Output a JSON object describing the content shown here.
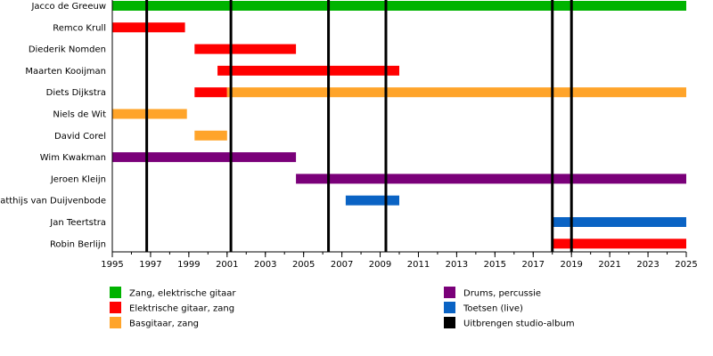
{
  "chart_data": {
    "type": "timeline",
    "title": "",
    "xlabel": "",
    "ylabel": "",
    "x_range": [
      1995,
      2025
    ],
    "x_ticks": [
      1995,
      1997,
      1999,
      2001,
      2003,
      2005,
      2007,
      2009,
      2011,
      2013,
      2015,
      2017,
      2019,
      2021,
      2023,
      2025
    ],
    "grid": false,
    "legend_position": "bottom",
    "roles": [
      {
        "key": "zang",
        "label": "Zang, elektrische gitaar",
        "color": "#00b300"
      },
      {
        "key": "gitaar",
        "label": "Elektrische gitaar, zang",
        "color": "#ff0000"
      },
      {
        "key": "bas",
        "label": "Basgitaar, zang",
        "color": "#ffa42a"
      },
      {
        "key": "drums",
        "label": "Drums, percussie",
        "color": "#7a0079"
      },
      {
        "key": "toetsen",
        "label": "Toetsen (live)",
        "color": "#0a63c4"
      },
      {
        "key": "album",
        "label": "Uitbrengen studio-album",
        "color": "#000000"
      }
    ],
    "members": [
      {
        "name": "Jacco de Greeuw",
        "periods": [
          {
            "role": "zang",
            "start": 1995,
            "end": 2025
          }
        ]
      },
      {
        "name": "Remco Krull",
        "periods": [
          {
            "role": "gitaar",
            "start": 1995,
            "end": 1998.8
          }
        ]
      },
      {
        "name": "Diederik Nomden",
        "periods": [
          {
            "role": "gitaar",
            "start": 1999.3,
            "end": 2004.6
          }
        ]
      },
      {
        "name": "Maarten Kooijman",
        "periods": [
          {
            "role": "gitaar",
            "start": 2000.5,
            "end": 2010
          }
        ]
      },
      {
        "name": "Diets Dijkstra",
        "periods": [
          {
            "role": "gitaar",
            "start": 1999.3,
            "end": 2001
          },
          {
            "role": "bas",
            "start": 2001,
            "end": 2025
          }
        ]
      },
      {
        "name": "Niels de Wit",
        "periods": [
          {
            "role": "bas",
            "start": 1995,
            "end": 1998.9
          }
        ]
      },
      {
        "name": "David Corel",
        "periods": [
          {
            "role": "bas",
            "start": 1999.3,
            "end": 2001
          }
        ]
      },
      {
        "name": "Wim Kwakman",
        "periods": [
          {
            "role": "drums",
            "start": 1995,
            "end": 2004.6
          }
        ]
      },
      {
        "name": "Jeroen Kleijn",
        "periods": [
          {
            "role": "drums",
            "start": 2004.6,
            "end": 2025
          }
        ]
      },
      {
        "name": "Matthijs van Duijvenbode",
        "periods": [
          {
            "role": "toetsen",
            "start": 2007.2,
            "end": 2010
          }
        ]
      },
      {
        "name": "Jan Teertstra",
        "periods": [
          {
            "role": "toetsen",
            "start": 2018,
            "end": 2025
          }
        ]
      },
      {
        "name": "Robin Berlijn",
        "periods": [
          {
            "role": "gitaar",
            "start": 2018,
            "end": 2025
          }
        ]
      }
    ],
    "album_releases": [
      1996.8,
      2001.2,
      2006.3,
      2009.3,
      2018,
      2019
    ]
  }
}
